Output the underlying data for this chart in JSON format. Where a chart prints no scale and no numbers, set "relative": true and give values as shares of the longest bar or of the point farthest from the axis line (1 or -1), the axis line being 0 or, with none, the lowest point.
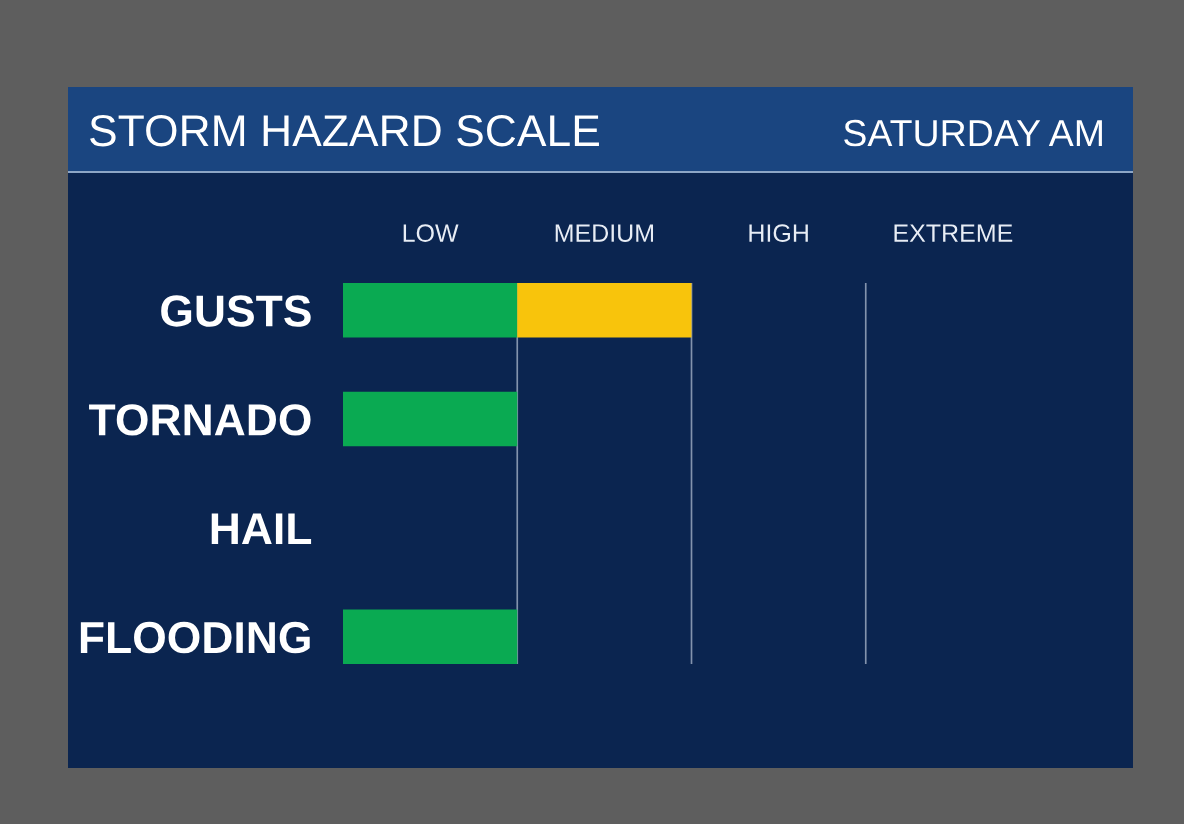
{
  "chart_data": {
    "type": "bar",
    "orientation": "horizontal",
    "stacked": true,
    "relative": true,
    "title": "STORM HAZARD SCALE",
    "subtitle": "SATURDAY AM",
    "categories": [
      "GUSTS",
      "TORNADO",
      "HAIL",
      "FLOODING"
    ],
    "series": [
      {
        "color": "#0aaa52",
        "values": [
          0.5,
          0.5,
          null,
          0.5
        ]
      },
      {
        "color": "#f8c40c",
        "values": [
          0.5,
          null,
          null,
          null
        ]
      }
    ],
    "annotations": [
      "LOW",
      "MEDIUM",
      "HIGH",
      "EXTREME"
    ],
    "ref_lines": [
      {
        "axis": "x",
        "value": 0.5,
        "color": "#8393ad"
      },
      {
        "axis": "x",
        "value": 1,
        "color": "#8393ad"
      },
      {
        "axis": "x",
        "value": 1.5,
        "color": "#8393ad"
      }
    ]
  }
}
